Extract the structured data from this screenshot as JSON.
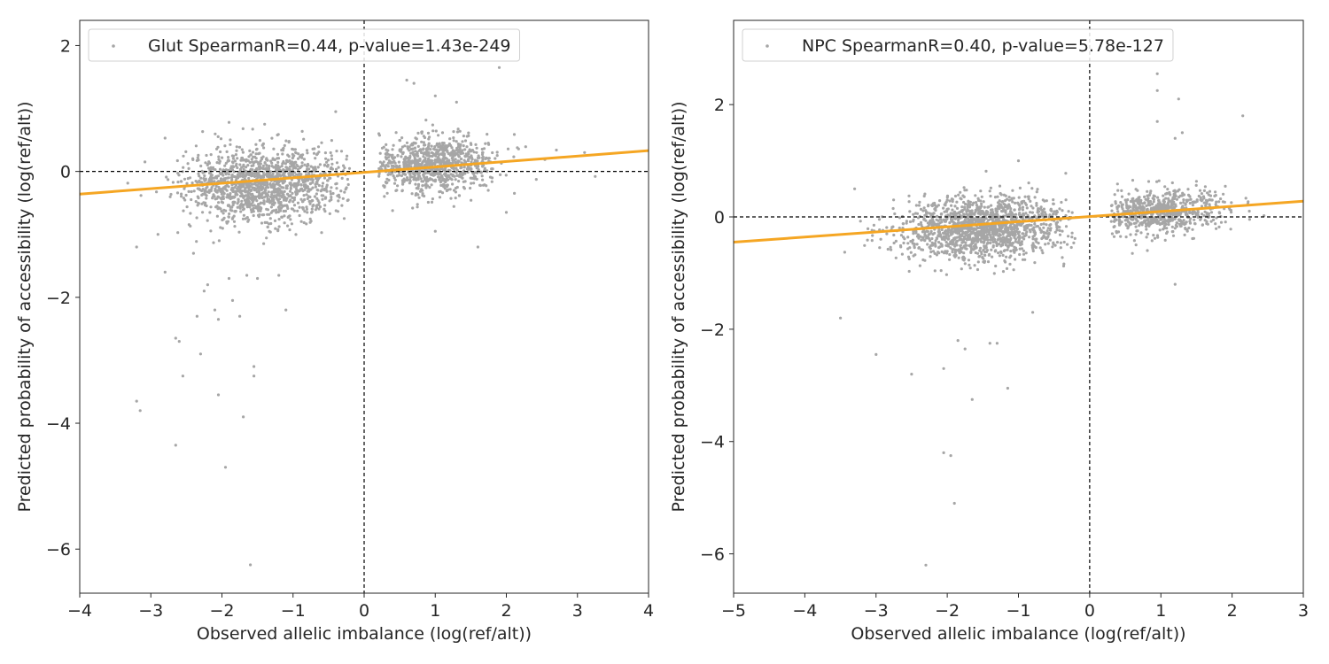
{
  "chart_data": [
    {
      "type": "scatter",
      "legend": "Glut SpearmanR=0.44, p-value=1.43e-249",
      "legend_placement": "upper-left",
      "xlabel": "Observed allelic imbalance (log(ref/alt))",
      "ylabel": "Predicted probability of accessibility (log(ref/alt))",
      "xlim": [
        -4,
        4
      ],
      "ylim": [
        -6.7,
        2.4
      ],
      "xticks": [
        -4,
        -3,
        -2,
        -1,
        0,
        1,
        2,
        3,
        4
      ],
      "xtick_labels": [
        "−4",
        "−3",
        "−2",
        "−1",
        "0",
        "1",
        "2",
        "3",
        "4"
      ],
      "yticks": [
        -6,
        -4,
        -2,
        0,
        2
      ],
      "ytick_labels": [
        "−6",
        "−4",
        "−2",
        "0",
        "2"
      ],
      "grid": false,
      "point_color": "#a6a6a6",
      "fit_color": "#f5a623",
      "reference_lines": {
        "x": 0,
        "y": 0,
        "style": "dashed",
        "color": "#000000"
      },
      "fit_line": {
        "x": [
          -4,
          4
        ],
        "y": [
          -0.36,
          0.33
        ]
      },
      "clusters": [
        {
          "cx": -1.4,
          "cy": -0.2,
          "sx": 0.55,
          "sy": 0.3,
          "n": 1400,
          "xmin": -3.6,
          "xmax": -0.2
        },
        {
          "cx": 1.0,
          "cy": 0.1,
          "sx": 0.45,
          "sy": 0.22,
          "n": 900,
          "xmin": 0.2,
          "xmax": 2.8
        }
      ],
      "outliers": [
        [
          -3.2,
          -3.65
        ],
        [
          -3.15,
          -3.8
        ],
        [
          -2.8,
          -1.6
        ],
        [
          -2.65,
          -2.65
        ],
        [
          -2.6,
          -2.7
        ],
        [
          -2.55,
          -3.25
        ],
        [
          -2.65,
          -4.35
        ],
        [
          -2.35,
          -2.3
        ],
        [
          -2.3,
          -2.9
        ],
        [
          -2.25,
          -1.9
        ],
        [
          -2.2,
          -1.8
        ],
        [
          -2.1,
          -2.2
        ],
        [
          -2.05,
          -2.35
        ],
        [
          -2.05,
          -3.55
        ],
        [
          -1.95,
          -4.7
        ],
        [
          -1.9,
          -1.7
        ],
        [
          -1.85,
          -2.05
        ],
        [
          -1.75,
          -2.3
        ],
        [
          -1.7,
          -3.9
        ],
        [
          -1.65,
          -1.65
        ],
        [
          -1.55,
          -3.1
        ],
        [
          -1.55,
          -3.25
        ],
        [
          -1.5,
          -1.7
        ],
        [
          -1.6,
          -6.25
        ],
        [
          -1.2,
          -1.65
        ],
        [
          -1.1,
          -2.2
        ],
        [
          -3.2,
          -1.2
        ],
        [
          -2.9,
          -1.0
        ],
        [
          -2.4,
          -1.3
        ],
        [
          1.6,
          -1.2
        ],
        [
          1.0,
          -0.95
        ],
        [
          2.0,
          -0.65
        ],
        [
          0.6,
          1.45
        ],
        [
          0.7,
          1.4
        ],
        [
          1.0,
          1.2
        ],
        [
          1.9,
          1.65
        ],
        [
          1.3,
          1.1
        ],
        [
          -0.4,
          0.95
        ],
        [
          -2.8,
          0.53
        ],
        [
          -1.9,
          0.78
        ],
        [
          3.25,
          -0.08
        ],
        [
          3.1,
          0.3
        ]
      ]
    },
    {
      "type": "scatter",
      "legend": "NPC SpearmanR=0.40, p-value=5.78e-127",
      "legend_placement": "upper-left",
      "xlabel": "Observed allelic imbalance (log(ref/alt))",
      "ylabel": "Predicted probability of accessibility (log(ref/alt))",
      "xlim": [
        -5,
        3
      ],
      "ylim": [
        -6.7,
        3.5
      ],
      "xticks": [
        -5,
        -4,
        -3,
        -2,
        -1,
        0,
        1,
        2,
        3
      ],
      "xtick_labels": [
        "−5",
        "−4",
        "−3",
        "−2",
        "−1",
        "0",
        "1",
        "2",
        "3"
      ],
      "yticks": [
        -6,
        -4,
        -2,
        0,
        2
      ],
      "ytick_labels": [
        "−6",
        "−4",
        "−2",
        "0",
        "2"
      ],
      "grid": false,
      "point_color": "#a6a6a6",
      "fit_color": "#f5a623",
      "reference_lines": {
        "x": 0,
        "y": 0,
        "style": "dashed",
        "color": "#000000"
      },
      "fit_line": {
        "x": [
          -5,
          3
        ],
        "y": [
          -0.45,
          0.28
        ]
      },
      "clusters": [
        {
          "cx": -1.5,
          "cy": -0.2,
          "sx": 0.6,
          "sy": 0.28,
          "n": 1500,
          "xmin": -3.8,
          "xmax": -0.2
        },
        {
          "cx": 1.0,
          "cy": 0.1,
          "sx": 0.45,
          "sy": 0.2,
          "n": 700,
          "xmin": 0.3,
          "xmax": 2.7
        }
      ],
      "outliers": [
        [
          -3.5,
          -1.8
        ],
        [
          -3.0,
          -2.45
        ],
        [
          -2.5,
          -2.8
        ],
        [
          -2.05,
          -4.2
        ],
        [
          -1.95,
          -4.25
        ],
        [
          -1.9,
          -5.1
        ],
        [
          -2.3,
          -6.2
        ],
        [
          -1.85,
          -2.2
        ],
        [
          -1.75,
          -2.35
        ],
        [
          -1.65,
          -3.25
        ],
        [
          -1.4,
          -2.25
        ],
        [
          -1.3,
          -2.25
        ],
        [
          -1.15,
          -3.05
        ],
        [
          -2.05,
          -2.7
        ],
        [
          -0.8,
          -1.7
        ],
        [
          0.95,
          2.55
        ],
        [
          0.95,
          2.25
        ],
        [
          0.95,
          1.7
        ],
        [
          1.25,
          2.1
        ],
        [
          1.3,
          1.5
        ],
        [
          1.2,
          1.4
        ],
        [
          2.15,
          1.8
        ],
        [
          1.2,
          -1.2
        ],
        [
          0.6,
          -0.65
        ],
        [
          -1.0,
          1.0
        ],
        [
          -3.3,
          0.5
        ]
      ]
    }
  ]
}
